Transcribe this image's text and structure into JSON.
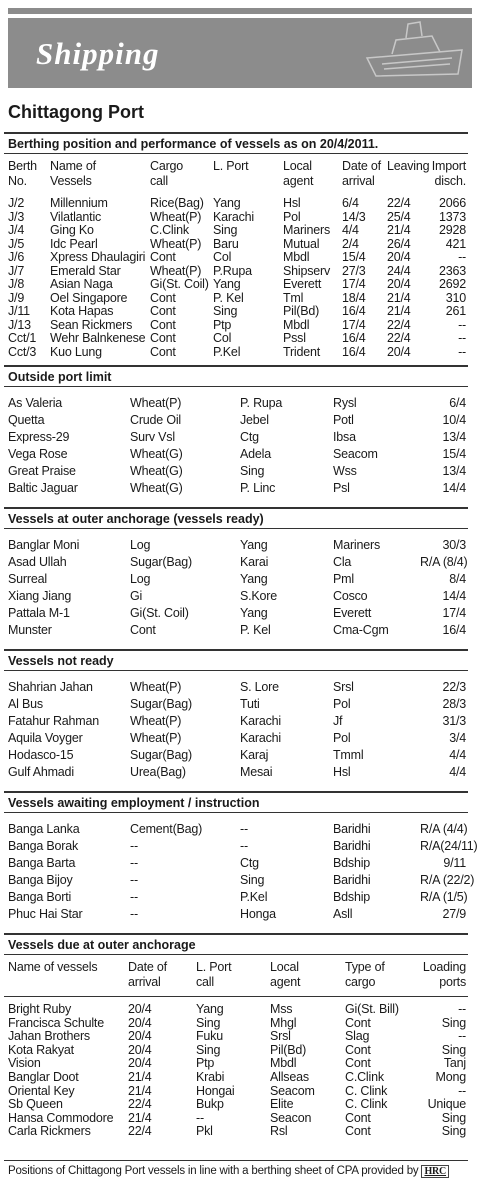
{
  "header": {
    "title": "Shipping"
  },
  "port": "Chittagong Port",
  "berthing": {
    "heading": "Berthing position and performance of vessels as on 20/4/2011.",
    "columns": [
      [
        "Berth",
        "No."
      ],
      [
        "Name of",
        "Vessels"
      ],
      [
        "Cargo",
        "call"
      ],
      [
        "L. Port"
      ],
      [
        "Local",
        "agent"
      ],
      [
        "Date of",
        "arrival"
      ],
      [
        "Leaving"
      ],
      [
        "Import",
        "disch."
      ]
    ],
    "rows": [
      [
        "J/2",
        "Millennium",
        "Rice(Bag)",
        "Yang",
        "Hsl",
        "6/4",
        "22/4",
        "2066"
      ],
      [
        "J/3",
        "Vilatlantic",
        "Wheat(P)",
        "Karachi",
        "Pol",
        "14/3",
        "25/4",
        "1373"
      ],
      [
        "J/4",
        "Ging Ko",
        "C.Clink",
        "Sing",
        "Mariners",
        "4/4",
        "21/4",
        "2928"
      ],
      [
        "J/5",
        "Idc Pearl",
        "Wheat(P)",
        "Baru",
        "Mutual",
        "2/4",
        "26/4",
        "421"
      ],
      [
        "J/6",
        "Xpress Dhaulagiri",
        "Cont",
        "Col",
        "Mbdl",
        "15/4",
        "20/4",
        "--"
      ],
      [
        "J/7",
        "Emerald Star",
        "Wheat(P)",
        "P.Rupa",
        "Shipserv",
        "27/3",
        "24/4",
        "2363"
      ],
      [
        "J/8",
        "Asian Naga",
        "Gi(St. Coil)",
        "Yang",
        "Everett",
        "17/4",
        "20/4",
        "2692"
      ],
      [
        "J/9",
        "Oel Singapore",
        "Cont",
        "P. Kel",
        "Tml",
        "18/4",
        "21/4",
        "310"
      ],
      [
        "J/11",
        "Kota Hapas",
        "Cont",
        "Sing",
        "Pil(Bd)",
        "16/4",
        "21/4",
        "261"
      ],
      [
        "J/13",
        "Sean Rickmers",
        "Cont",
        "Ptp",
        "Mbdl",
        "17/4",
        "22/4",
        "--"
      ],
      [
        "Cct/1",
        "Wehr Balnkenese",
        "Cont",
        "Col",
        "Pssl",
        "16/4",
        "22/4",
        "--"
      ],
      [
        "Cct/3",
        "Kuo Lung",
        "Cont",
        "P.Kel",
        "Trident",
        "16/4",
        "20/4",
        "--"
      ]
    ]
  },
  "sections": [
    {
      "heading": "Outside port limit",
      "rows": [
        [
          "As Valeria",
          "Wheat(P)",
          "P. Rupa",
          "Rysl",
          "6/4"
        ],
        [
          "Quetta",
          "Crude Oil",
          "Jebel",
          "Potl",
          "10/4"
        ],
        [
          "Express-29",
          "Surv Vsl",
          "Ctg",
          "Ibsa",
          "13/4"
        ],
        [
          "Vega Rose",
          "Wheat(G)",
          "Adela",
          "Seacom",
          "15/4"
        ],
        [
          "Great Praise",
          "Wheat(G)",
          "Sing",
          "Wss",
          "13/4"
        ],
        [
          "Baltic Jaguar",
          "Wheat(G)",
          "P. Linc",
          "Psl",
          "14/4"
        ]
      ]
    },
    {
      "heading": "Vessels at outer anchorage  (vessels ready)",
      "rows": [
        [
          "Banglar Moni",
          "Log",
          "Yang",
          "Mariners",
          "30/3"
        ],
        [
          "Asad Ullah",
          "Sugar(Bag)",
          "Karai",
          "Cla",
          "R/A (8/4)"
        ],
        [
          "Surreal",
          "Log",
          "Yang",
          "Pml",
          "8/4"
        ],
        [
          "Xiang Jiang",
          "Gi",
          "S.Kore",
          "Cosco",
          "14/4"
        ],
        [
          "Pattala M-1",
          "Gi(St. Coil)",
          "Yang",
          "Everett",
          "17/4"
        ],
        [
          "Munster",
          "Cont",
          "P. Kel",
          "Cma-Cgm",
          "16/4"
        ]
      ]
    },
    {
      "heading": "Vessels  not  ready",
      "rows": [
        [
          "Shahrian Jahan",
          "Wheat(P)",
          "S. Lore",
          "Srsl",
          "22/3"
        ],
        [
          "Al Bus",
          "Sugar(Bag)",
          "Tuti",
          "Pol",
          "28/3"
        ],
        [
          "Fatahur Rahman",
          "Wheat(P)",
          "Karachi",
          "Jf",
          "31/3"
        ],
        [
          "Aquila Voyger",
          "Wheat(P)",
          "Karachi",
          "Pol",
          "3/4"
        ],
        [
          "Hodasco-15",
          "Sugar(Bag)",
          "Karaj",
          "Tmml",
          "4/4"
        ],
        [
          "Gulf Ahmadi",
          "Urea(Bag)",
          "Mesai",
          "Hsl",
          "4/4"
        ]
      ]
    },
    {
      "heading": "Vessels awaiting employment / instruction",
      "rows": [
        [
          "Banga Lanka",
          "Cement(Bag)",
          "--",
          "Baridhi",
          "R/A (4/4)"
        ],
        [
          "Banga Borak",
          "--",
          "--",
          "Baridhi",
          "R/A(24/11)"
        ],
        [
          "Banga Barta",
          "--",
          "Ctg",
          "Bdship",
          "9/11"
        ],
        [
          "Banga Bijoy",
          "--",
          "Sing",
          "Baridhi",
          "R/A (22/2)"
        ],
        [
          "Banga Borti",
          "--",
          "P.Kel",
          "Bdship",
          "R/A (1/5)"
        ],
        [
          "Phuc Hai Star",
          "--",
          "Honga",
          "Asll",
          "27/9"
        ]
      ]
    }
  ],
  "due": {
    "heading": "Vessels due at outer anchorage",
    "columns": [
      [
        "Name of vessels"
      ],
      [
        "Date of",
        "arrival"
      ],
      [
        "L. Port",
        "call"
      ],
      [
        "Local",
        "agent"
      ],
      [
        "Type of",
        "cargo"
      ],
      [
        "Loading",
        "ports"
      ]
    ],
    "rows": [
      [
        "Bright Ruby",
        "20/4",
        "Yang",
        "Mss",
        "Gi(St. Bill)",
        "--"
      ],
      [
        "Francisca Schulte",
        "20/4",
        "Sing",
        "Mhgl",
        "Cont",
        "Sing"
      ],
      [
        "Jahan Brothers",
        "20/4",
        "Fuku",
        "Srsl",
        "Slag",
        "--"
      ],
      [
        "Kota Rakyat",
        "20/4",
        "Sing",
        "Pil(Bd)",
        "Cont",
        "Sing"
      ],
      [
        "Vision",
        "20/4",
        "Ptp",
        "Mbdl",
        "Cont",
        "Tanj"
      ],
      [
        "Banglar Doot",
        "21/4",
        "Krabi",
        "Allseas",
        "C.Clink",
        "Mong"
      ],
      [
        "Oriental Key",
        "21/4",
        "Hongai",
        "Seacom",
        "C. Clink",
        "--"
      ],
      [
        "Sb Queen",
        "22/4",
        "Bukp",
        "Elite",
        "C. Clink",
        "Unique"
      ],
      [
        "Hansa Commodore",
        "21/4",
        "--",
        "Seacon",
        "Cont",
        "Sing"
      ],
      [
        "Carla Rickmers",
        "22/4",
        "Pkl",
        "Rsl",
        "Cont",
        "Sing"
      ]
    ]
  },
  "footer": {
    "text": "Positions of Chittagong Port vessels in line with a berthing sheet of CPA provided by",
    "logo": "HRC"
  }
}
